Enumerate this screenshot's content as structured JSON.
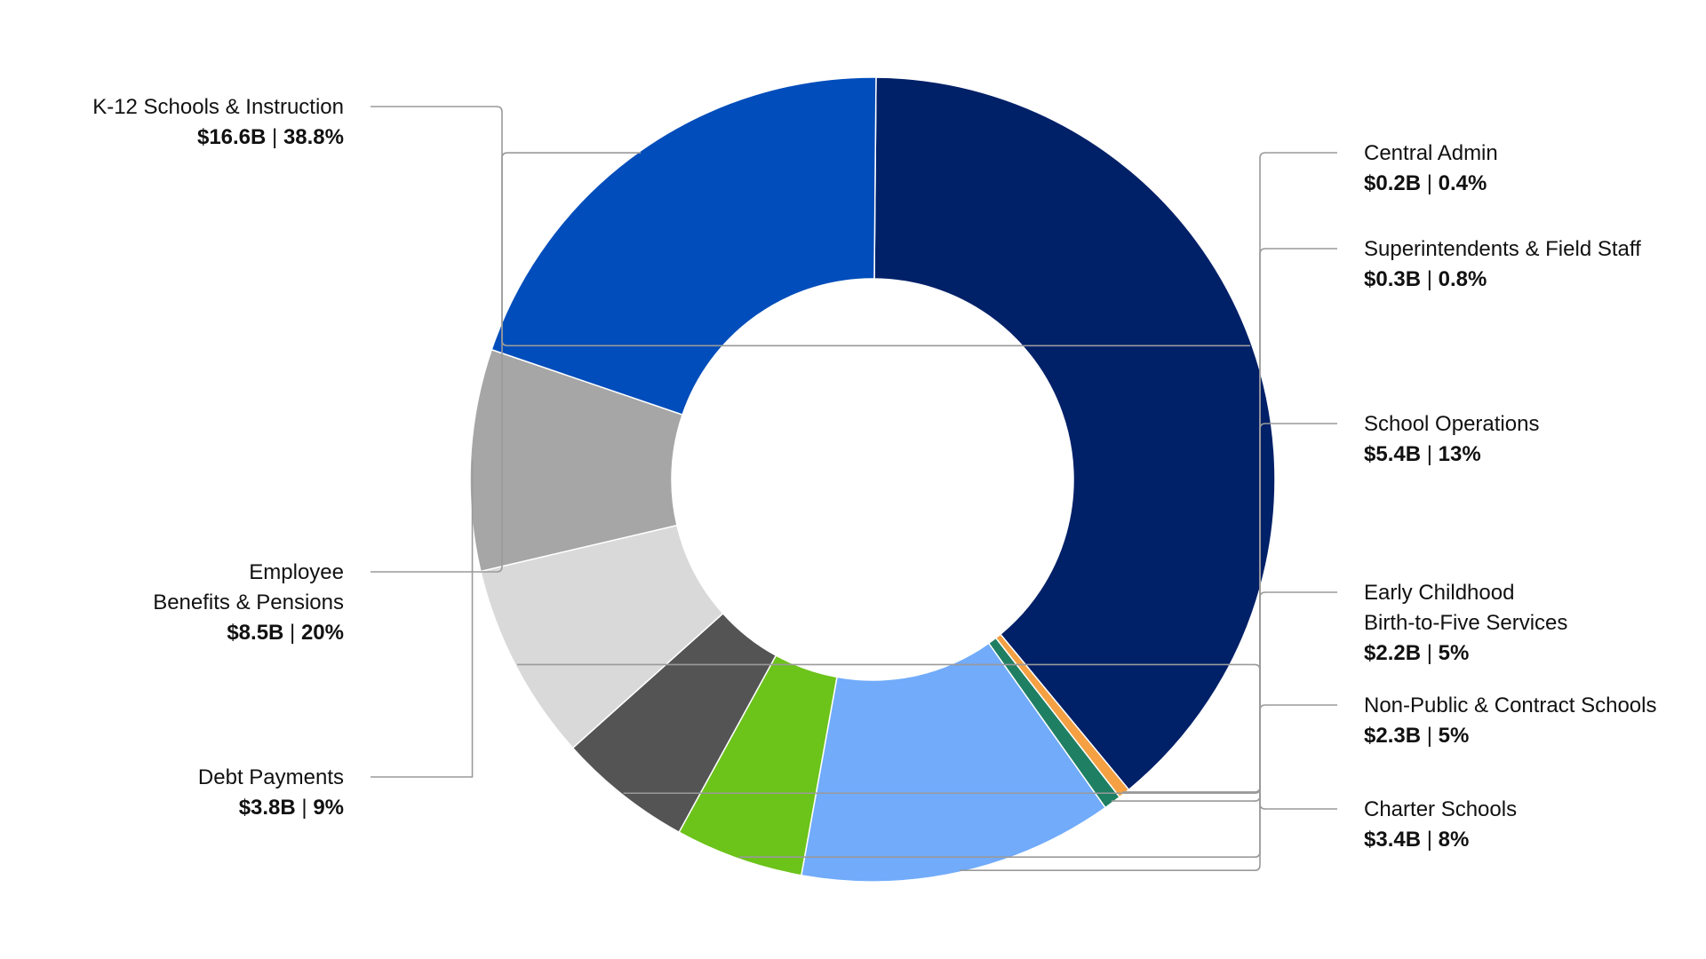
{
  "chart_data": {
    "type": "pie",
    "donut": true,
    "title": "",
    "legend": "none",
    "slices": [
      {
        "label": "K-12 Schools & Instruction",
        "lines": [
          "K-12 Schools & Instruction"
        ],
        "amount": "$16.6B",
        "percent_label": "38.8%",
        "value": 16.6,
        "color": "#002068"
      },
      {
        "label": "Central Admin",
        "lines": [
          "Central Admin"
        ],
        "amount": "$0.2B",
        "percent_label": "0.4%",
        "value": 0.2,
        "color": "#f4a043"
      },
      {
        "label": "Superintendents & Field Staff",
        "lines": [
          "Superintendents & Field Staff"
        ],
        "amount": "$0.3B",
        "percent_label": "0.8%",
        "value": 0.3,
        "color": "#1f7f62"
      },
      {
        "label": "School Operations",
        "lines": [
          "School Operations"
        ],
        "amount": "$5.4B",
        "percent_label": "13%",
        "value": 5.4,
        "color": "#71abfa"
      },
      {
        "label": "Early Childhood Birth-to-Five Services",
        "lines": [
          "Early Childhood",
          "Birth-to-Five Services"
        ],
        "amount": "$2.2B",
        "percent_label": "5%",
        "value": 2.2,
        "color": "#6cc31a"
      },
      {
        "label": "Non-Public & Contract Schools",
        "lines": [
          "Non-Public & Contract Schools"
        ],
        "amount": "$2.3B",
        "percent_label": "5%",
        "value": 2.3,
        "color": "#545454"
      },
      {
        "label": "Charter Schools",
        "lines": [
          "Charter Schools"
        ],
        "amount": "$3.4B",
        "percent_label": "8%",
        "value": 3.4,
        "color": "#d9d9d9"
      },
      {
        "label": "Debt Payments",
        "lines": [
          "Debt Payments"
        ],
        "amount": "$3.8B",
        "percent_label": "9%",
        "value": 3.8,
        "color": "#a6a6a6"
      },
      {
        "label": "Employee Benefits & Pensions",
        "lines": [
          "Employee",
          "Benefits & Pensions"
        ],
        "amount": "$8.5B",
        "percent_label": "20%",
        "value": 8.5,
        "color": "#004dbb"
      }
    ]
  }
}
